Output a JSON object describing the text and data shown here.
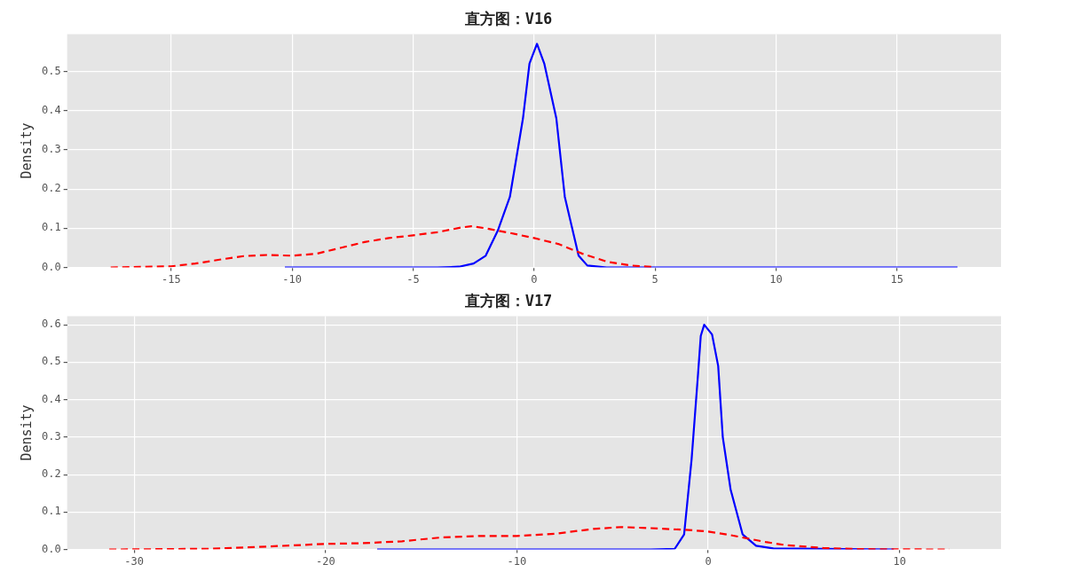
{
  "chart_data": [
    {
      "type": "line",
      "title": "直方图：V16",
      "ylabel": "Density",
      "xlim": [
        -19.3,
        19.3
      ],
      "ylim": [
        0,
        0.595
      ],
      "xticks": [
        -15,
        -10,
        -5,
        0,
        5,
        10,
        15
      ],
      "yticks": [
        {
          "value": 0,
          "label": "0.0"
        },
        0.1,
        0.2,
        0.3,
        0.4,
        0.5
      ],
      "grid": true,
      "legend": false,
      "marker": "none",
      "series": [
        {
          "color": "#ff0000",
          "line_style": "dashed",
          "x": [
            -17.5,
            -15,
            -14,
            -13,
            -12,
            -11,
            -10,
            -9,
            -8,
            -7,
            -6,
            -5,
            -4,
            -3,
            -2.6,
            -2,
            -1,
            0,
            1,
            2,
            3,
            4,
            5
          ],
          "values": [
            0,
            0.003,
            0.01,
            0.02,
            0.029,
            0.032,
            0.03,
            0.035,
            0.05,
            0.065,
            0.075,
            0.082,
            0.09,
            0.102,
            0.105,
            0.1,
            0.088,
            0.075,
            0.06,
            0.035,
            0.015,
            0.005,
            0.001
          ]
        },
        {
          "color": "#0000ff",
          "line_style": "solid",
          "x": [
            -10.3,
            -4,
            -3.1,
            -2.5,
            -2,
            -1.5,
            -1,
            -0.46,
            -0.19,
            0.12,
            0.42,
            0.92,
            1.27,
            1.84,
            2.2,
            3,
            17.5
          ],
          "values": [
            0,
            0,
            0.002,
            0.01,
            0.03,
            0.094,
            0.18,
            0.38,
            0.52,
            0.57,
            0.52,
            0.38,
            0.18,
            0.03,
            0.005,
            0,
            0
          ]
        }
      ]
    },
    {
      "type": "line",
      "title": "直方图：V17",
      "ylabel": "Density",
      "xlim": [
        -33.5,
        15.3
      ],
      "ylim": [
        0,
        0.623
      ],
      "xticks": [
        -30,
        -20,
        -10,
        0,
        10
      ],
      "yticks": [
        {
          "value": 0,
          "label": "0.0"
        },
        0.1,
        0.2,
        0.3,
        0.4,
        0.5,
        0.6
      ],
      "grid": true,
      "legend": false,
      "marker": "none",
      "series": [
        {
          "color": "#ff0000",
          "line_style": "dashed",
          "x": [
            -31.3,
            -26,
            -23,
            -20,
            -18,
            -16,
            -14,
            -12,
            -10,
            -8,
            -6,
            -4.5,
            -3,
            -1,
            0,
            1,
            2,
            3,
            4,
            6,
            8,
            12.6
          ],
          "values": [
            0,
            0.002,
            0.008,
            0.015,
            0.017,
            0.022,
            0.032,
            0.036,
            0.036,
            0.042,
            0.055,
            0.06,
            0.057,
            0.052,
            0.048,
            0.04,
            0.03,
            0.02,
            0.012,
            0.004,
            0.001,
            0
          ]
        },
        {
          "color": "#0000ff",
          "line_style": "solid",
          "x": [
            -17.3,
            -3,
            -1.75,
            -1.26,
            -0.87,
            -0.53,
            -0.39,
            -0.21,
            0.2,
            0.52,
            0.76,
            1.17,
            1.8,
            2.5,
            3.4,
            9.7
          ],
          "values": [
            0,
            0,
            0.002,
            0.04,
            0.24,
            0.47,
            0.57,
            0.6,
            0.574,
            0.49,
            0.3,
            0.16,
            0.04,
            0.01,
            0.003,
            0
          ]
        }
      ]
    }
  ]
}
